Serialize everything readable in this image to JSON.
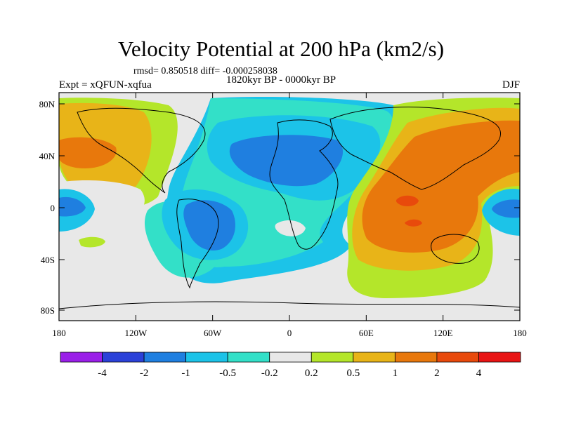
{
  "title": "Velocity Potential at 200 hPa (km2/s)",
  "stats": "rmsd= 0.850518 diff= -0.000258038",
  "experiment": "Expt = xQFUN-xqfua",
  "period": "1820kyr BP - 0000kyr BP",
  "season": "DJF",
  "lat_labels": [
    "80N",
    "40N",
    "0",
    "40S",
    "80S"
  ],
  "lon_labels": [
    "180",
    "120W",
    "60W",
    "0",
    "60E",
    "120E",
    "180"
  ],
  "colorbar": {
    "labels": [
      "-4",
      "-2",
      "-1",
      "-0.5",
      "-0.2",
      "0.2",
      "0.5",
      "1",
      "2",
      "4"
    ],
    "colors": [
      "#9a1fe8",
      "#2b41d8",
      "#1f7fe0",
      "#1cc3e8",
      "#33e0c8",
      "#e8e8e8",
      "#b4e62a",
      "#e8b418",
      "#e8780c",
      "#e84a0c",
      "#e81414"
    ]
  },
  "palette": {
    "neutral": "#e8e8e8",
    "dark_blue": "#1f7fe0",
    "light_blue": "#1cc3e8",
    "cyan": "#33e0c8",
    "lime": "#b4e62a",
    "gold": "#e8b418",
    "orange": "#e8780c",
    "red": "#e84a0c"
  }
}
